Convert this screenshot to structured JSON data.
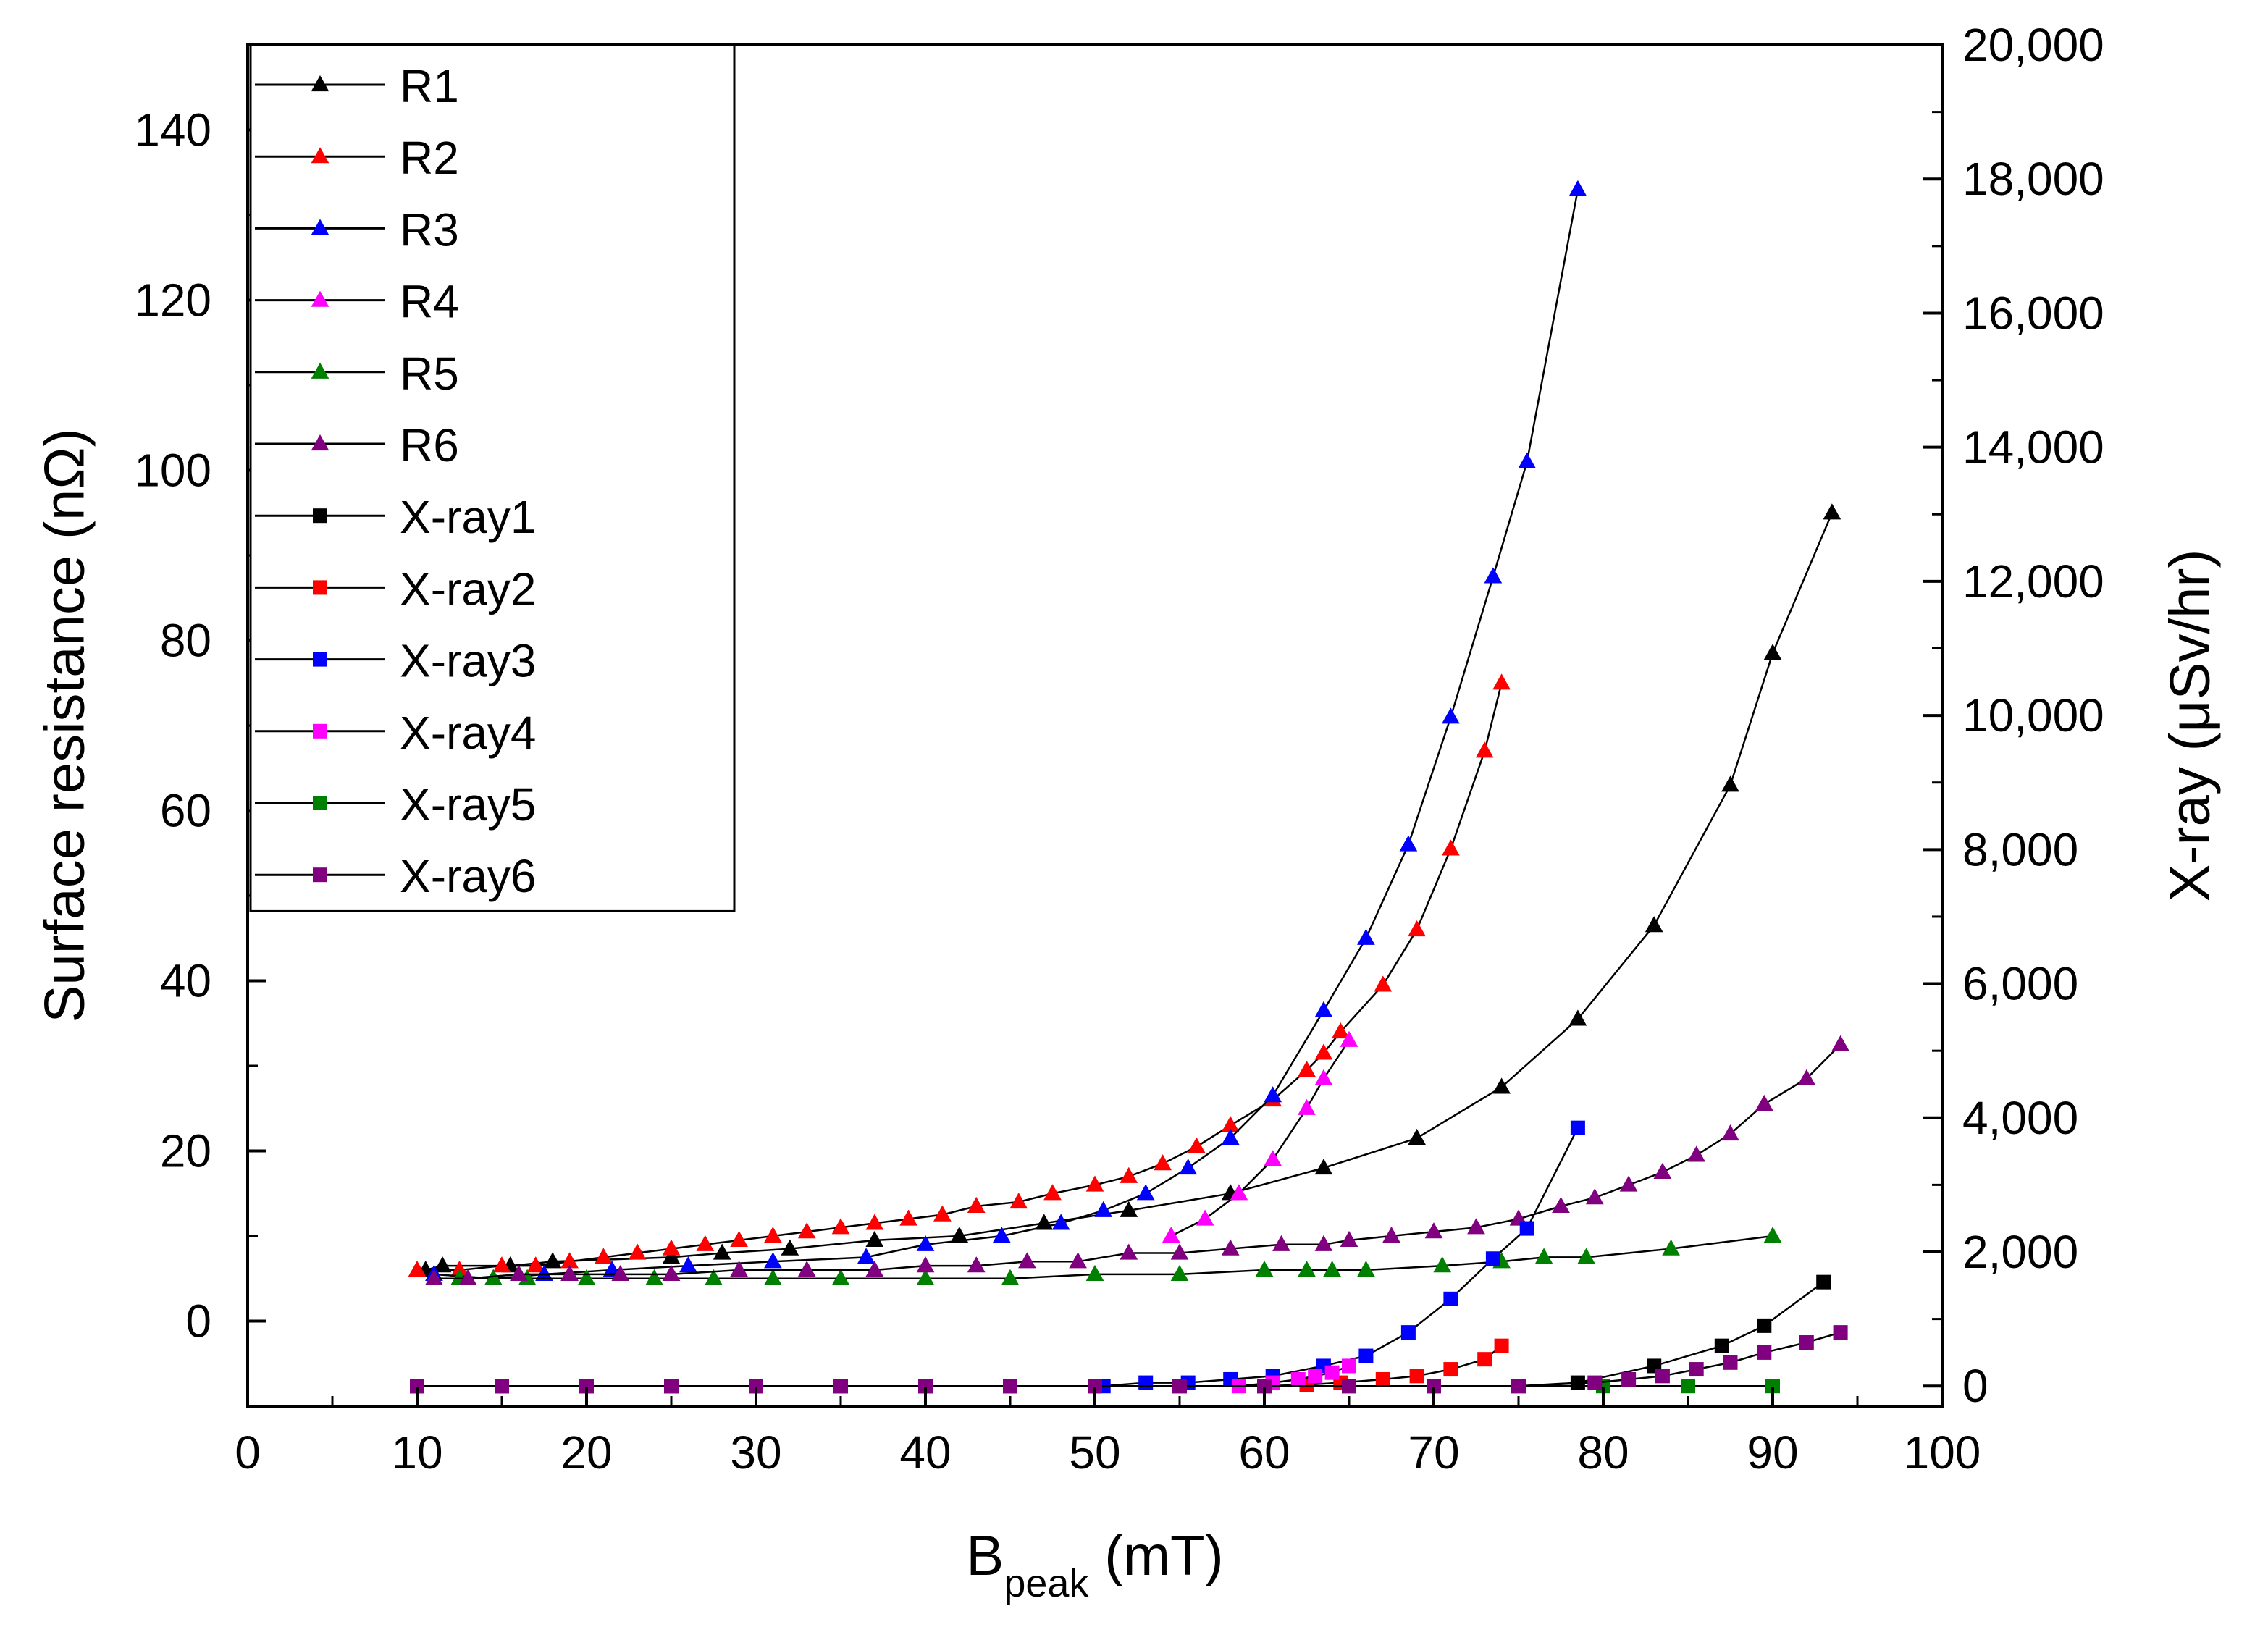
{
  "chart_data": {
    "type": "line",
    "x_axis": {
      "label": "B",
      "label_subscript": "peak",
      "label_suffix": " (mT)",
      "range": [
        0,
        100
      ],
      "ticks": [
        0,
        10,
        20,
        30,
        40,
        50,
        60,
        70,
        80,
        90,
        100
      ],
      "tick_labels": [
        "0",
        "10",
        "20",
        "30",
        "40",
        "50",
        "60",
        "70",
        "80",
        "90",
        "100"
      ],
      "minor_step": 5
    },
    "y_axis_left": {
      "label": "Surface resistance (nΩ)",
      "range": [
        -10,
        150
      ],
      "ticks": [
        0,
        20,
        40,
        60,
        80,
        100,
        120,
        140
      ],
      "tick_labels": [
        "0",
        "20",
        "40",
        "60",
        "80",
        "100",
        "120",
        "140"
      ],
      "minor_step": 10
    },
    "y_axis_right": {
      "label": "X-ray (μSv/hr)",
      "range": [
        -300,
        20000
      ],
      "ticks": [
        0,
        2000,
        4000,
        6000,
        8000,
        10000,
        12000,
        14000,
        16000,
        18000,
        20000
      ],
      "tick_labels": [
        "0",
        "2,000",
        "4,000",
        "6,000",
        "8,000",
        "10,000",
        "12,000",
        "14,000",
        "16,000",
        "18,000",
        "20,000"
      ],
      "minor_step": 1000
    },
    "grid": false,
    "legend_position": "top-left",
    "series": [
      {
        "name": "R1",
        "axis": "left",
        "marker": "triangle",
        "color": "#000000",
        "x": [
          10.5,
          11.5,
          15.5,
          18,
          25,
          28,
          32,
          37,
          42,
          47,
          52,
          58,
          63.5,
          69,
          74,
          78.5,
          83,
          87.5,
          90,
          93.5
        ],
        "y": [
          6,
          6.5,
          6.5,
          7,
          7.5,
          8,
          8.5,
          9.5,
          10,
          11.5,
          13,
          15,
          18,
          21.5,
          27.5,
          35.5,
          46.5,
          63,
          78.5,
          95
        ]
      },
      {
        "name": "R2",
        "axis": "left",
        "marker": "triangle",
        "color": "#ff0000",
        "x": [
          10,
          12.5,
          15,
          17,
          19,
          21,
          23,
          25,
          27,
          29,
          31,
          33,
          35,
          37,
          39,
          41,
          43,
          45.5,
          47.5,
          50,
          52,
          54,
          56,
          58,
          60.5,
          62.5,
          63.5,
          64.5,
          67,
          69,
          71,
          73,
          74
        ],
        "y": [
          6,
          6,
          6.5,
          6.5,
          7,
          7.5,
          8,
          8.5,
          9,
          9.5,
          10,
          10.5,
          11,
          11.5,
          12,
          12.5,
          13.5,
          14,
          15,
          16,
          17,
          18.5,
          20.5,
          23,
          26,
          29.5,
          31.5,
          34,
          39.5,
          46,
          55.5,
          67,
          75
        ]
      },
      {
        "name": "R3",
        "axis": "left",
        "marker": "triangle",
        "color": "#0000ff",
        "x": [
          11,
          14.5,
          17.5,
          21.5,
          26,
          31,
          36.5,
          40,
          44.5,
          48,
          50.5,
          53,
          55.5,
          58,
          60.5,
          63.5,
          66,
          68.5,
          71,
          73.5,
          75.5,
          78.5
        ],
        "y": [
          5.5,
          5,
          5.5,
          6,
          6.5,
          7,
          7.5,
          9,
          10,
          11.5,
          13,
          15,
          18,
          21.5,
          26.5,
          36.5,
          45,
          56,
          71,
          87.5,
          101,
          133
        ]
      },
      {
        "name": "R4",
        "axis": "left",
        "marker": "triangle",
        "color": "#ff00ff",
        "x": [
          54.5,
          56.5,
          58.5,
          60.5,
          62.5,
          63.5,
          65
        ],
        "y": [
          10,
          12,
          15,
          19,
          25,
          28.5,
          33
        ]
      },
      {
        "name": "R5",
        "axis": "left",
        "marker": "triangle",
        "color": "#008000",
        "x": [
          11,
          12.5,
          14.5,
          16.5,
          20,
          24,
          27.5,
          31,
          35,
          40,
          45,
          50,
          55,
          60,
          62.5,
          64,
          66,
          70.5,
          74,
          76.5,
          79,
          84,
          90
        ],
        "y": [
          5,
          5,
          5,
          5,
          5,
          5,
          5,
          5,
          5,
          5,
          5,
          5.5,
          5.5,
          6,
          6,
          6,
          6,
          6.5,
          7,
          7.5,
          7.5,
          8.5,
          10
        ]
      },
      {
        "name": "R6",
        "axis": "left",
        "marker": "triangle",
        "color": "#800080",
        "x": [
          11,
          13,
          16,
          19,
          22,
          25,
          29,
          33,
          37,
          40,
          43,
          46,
          49,
          52,
          55,
          58,
          61,
          63.5,
          65,
          67.5,
          70,
          72.5,
          75,
          77.5,
          79.5,
          81.5,
          83.5,
          85.5,
          87.5,
          89.5,
          92,
          94
        ],
        "y": [
          5,
          5,
          5.5,
          5.5,
          5.5,
          5.5,
          6,
          6,
          6,
          6.5,
          6.5,
          7,
          7,
          8,
          8,
          8.5,
          9,
          9,
          9.5,
          10,
          10.5,
          11,
          12,
          13.5,
          14.5,
          16,
          17.5,
          19.5,
          22,
          25.5,
          28.5,
          32.5
        ]
      },
      {
        "name": "X-ray1",
        "axis": "right",
        "marker": "square",
        "color": "#000000",
        "x": [
          10,
          15,
          20,
          25,
          30,
          35,
          40,
          45,
          50,
          55,
          60,
          65,
          70,
          75,
          78.5,
          83,
          87,
          89.5,
          93
        ],
        "y": [
          0,
          0,
          0,
          0,
          0,
          0,
          0,
          0,
          0,
          0,
          0,
          0,
          0,
          0,
          50,
          300,
          600,
          900,
          1550
        ]
      },
      {
        "name": "X-ray2",
        "axis": "right",
        "marker": "square",
        "color": "#ff0000",
        "x": [
          10,
          15,
          20,
          25,
          30,
          35,
          40,
          45,
          50,
          55,
          60,
          62.5,
          64.5,
          67,
          69,
          71,
          73,
          74
        ],
        "y": [
          0,
          0,
          0,
          0,
          0,
          0,
          0,
          0,
          0,
          0,
          0,
          20,
          50,
          100,
          150,
          250,
          400,
          600
        ]
      },
      {
        "name": "X-ray3",
        "axis": "right",
        "marker": "square",
        "color": "#0000ff",
        "x": [
          10,
          15,
          20,
          25,
          30,
          35,
          40,
          45,
          50.5,
          53,
          55.5,
          58,
          60.5,
          63.5,
          66,
          68.5,
          71,
          73.5,
          75.5,
          78.5
        ],
        "y": [
          0,
          0,
          0,
          0,
          0,
          0,
          0,
          0,
          0,
          50,
          50,
          100,
          150,
          300,
          450,
          800,
          1300,
          1900,
          2350,
          3850
        ]
      },
      {
        "name": "X-ray4",
        "axis": "right",
        "marker": "square",
        "color": "#ff00ff",
        "x": [
          58.5,
          60.5,
          62,
          63,
          64,
          65
        ],
        "y": [
          0,
          50,
          100,
          150,
          200,
          300
        ]
      },
      {
        "name": "X-ray5",
        "axis": "right",
        "marker": "square",
        "color": "#008000",
        "x": [
          10,
          15,
          20,
          25,
          30,
          35,
          40,
          45,
          50,
          55,
          60,
          65,
          70,
          75,
          80,
          85,
          90
        ],
        "y": [
          0,
          0,
          0,
          0,
          0,
          0,
          0,
          0,
          0,
          0,
          0,
          0,
          0,
          0,
          0,
          0,
          0
        ]
      },
      {
        "name": "X-ray6",
        "axis": "right",
        "marker": "square",
        "color": "#800080",
        "x": [
          10,
          15,
          20,
          25,
          30,
          35,
          40,
          45,
          50,
          55,
          60,
          65,
          70,
          75,
          79.5,
          81.5,
          83.5,
          85.5,
          87.5,
          89.5,
          92,
          94
        ],
        "y": [
          0,
          0,
          0,
          0,
          0,
          0,
          0,
          0,
          0,
          0,
          0,
          0,
          0,
          0,
          50,
          100,
          150,
          250,
          350,
          500,
          650,
          800
        ]
      }
    ]
  }
}
